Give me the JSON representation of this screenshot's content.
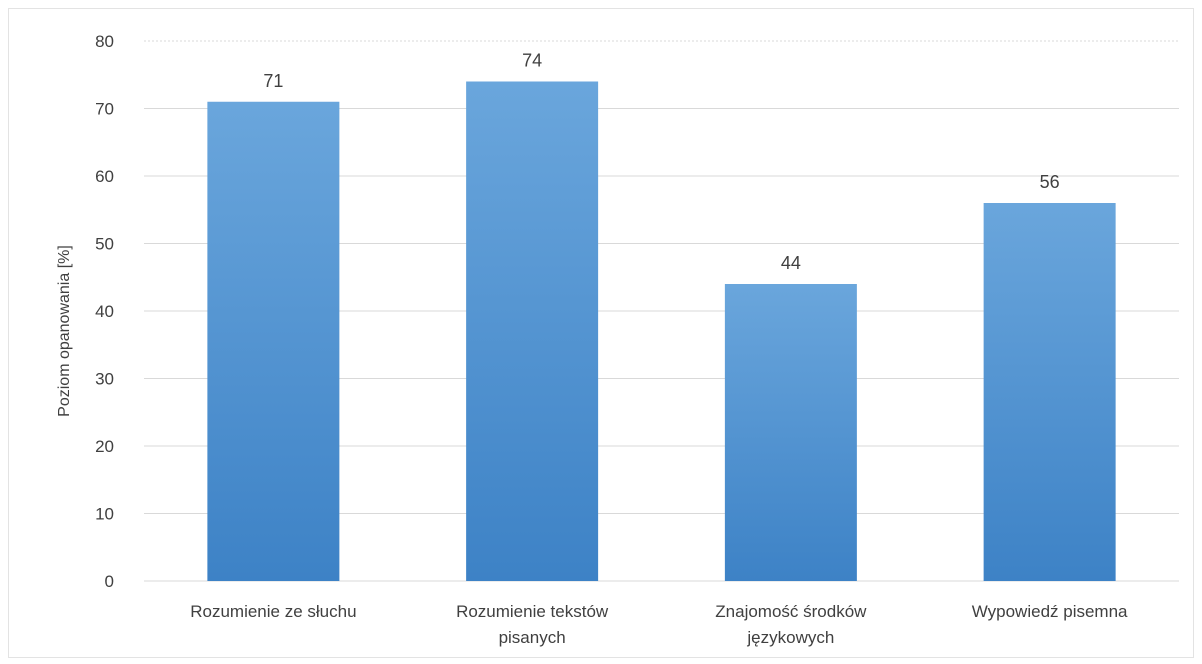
{
  "chart_data": {
    "type": "bar",
    "categories": [
      [
        "Rozumienie ze słuchu"
      ],
      [
        "Rozumienie tekstów",
        "pisanych"
      ],
      [
        "Znajomość środków",
        "językowych"
      ],
      [
        "Wypowiedź pisemna"
      ]
    ],
    "values": [
      71,
      74,
      44,
      56
    ],
    "data_labels": [
      "71",
      "74",
      "44",
      "56"
    ],
    "ylabel": "Poziom opanowania [%]",
    "xlabel": "",
    "ylim": [
      0,
      80
    ],
    "yticks": [
      "0",
      "10",
      "20",
      "30",
      "40",
      "50",
      "60",
      "70",
      "80"
    ],
    "grid": true,
    "legend": "none",
    "colors": {
      "bar_top": "#6aa6dc",
      "bar_bottom": "#3d82c6",
      "grid": "#d9d9d9",
      "text": "#404040"
    }
  }
}
